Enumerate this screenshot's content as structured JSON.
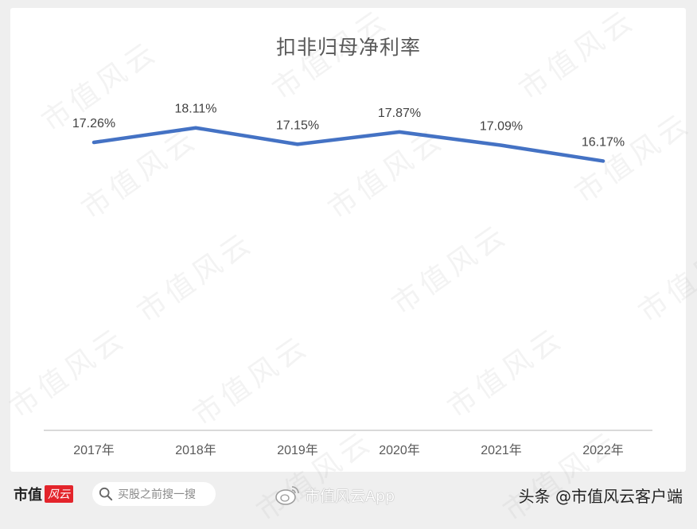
{
  "chart_data": {
    "type": "line",
    "title": "扣非归母净利率",
    "categories": [
      "2017年",
      "2018年",
      "2019年",
      "2020年",
      "2021年",
      "2022年"
    ],
    "series": [
      {
        "name": "扣非归母净利率",
        "values": [
          17.26,
          18.11,
          17.15,
          17.87,
          17.09,
          16.17
        ],
        "labels": [
          "17.26%",
          "18.11%",
          "17.15%",
          "17.87%",
          "17.09%",
          "16.17%"
        ],
        "color": "#4472c4"
      }
    ],
    "xlabel": "",
    "ylabel": "",
    "grid": false,
    "legend": "none",
    "y_axis_visible": false
  },
  "watermark": "市值风云",
  "footer": {
    "brand": "市值",
    "brand_red": "风云",
    "search_placeholder": "买股之前搜一搜",
    "weibo_text": "市值风云App",
    "toutiao_text": "头条 @市值风云客户端"
  },
  "colors": {
    "line": "#4472c4",
    "axis": "#d9d9d9",
    "background": "#efefef",
    "card": "#ffffff",
    "brand_red": "#e3242b"
  }
}
